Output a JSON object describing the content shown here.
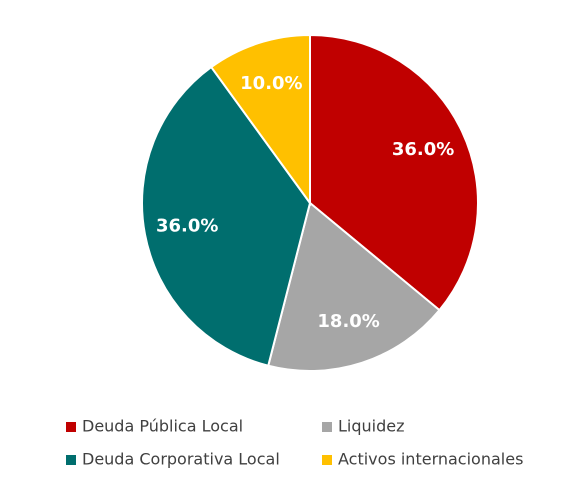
{
  "chart_data": {
    "type": "pie",
    "categories": [
      "Deuda Pública Local",
      "Liquidez",
      "Deuda Corporativa Local",
      "Activos internacionales"
    ],
    "values": [
      36,
      18,
      36,
      10
    ],
    "value_labels": [
      "36.0%",
      "18.0%",
      "36.0%",
      "10.0%"
    ],
    "colors": [
      "#c00000",
      "#a6a6a6",
      "#006e6e",
      "#ffc000"
    ]
  }
}
